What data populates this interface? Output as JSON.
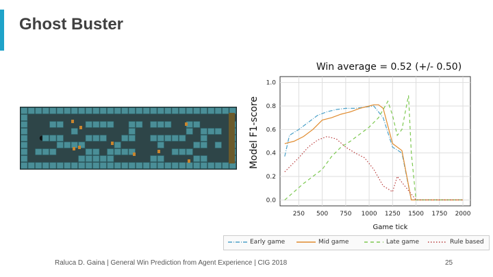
{
  "slide": {
    "title": "Ghost Buster",
    "footer": "Raluca D. Gaina | General Win Prediction from Agent Experience | CIG 2018",
    "page_number": "25"
  },
  "colors": {
    "accent": "#1fa3c9",
    "early": "#4aa0c8",
    "mid": "#e08a2c",
    "late": "#7cc850",
    "rule": "#b83a3a",
    "map_bg": "#2e4548",
    "map_wall": "#4a8e97"
  },
  "game_image": {
    "name": "Ghost Buster level"
  },
  "chart_data": {
    "type": "line",
    "title": "Win average = 0.52 (+/- 0.50)",
    "xlabel": "Game tick",
    "ylabel": "Model F1-score",
    "xlim": [
      50,
      2080
    ],
    "ylim": [
      -0.05,
      1.05
    ],
    "xticks": [
      250,
      500,
      750,
      1000,
      1250,
      1500,
      1750,
      2000
    ],
    "yticks": [
      0.0,
      0.2,
      0.4,
      0.6,
      0.8,
      1.0
    ],
    "grid": true,
    "legend_position": "bottom",
    "series": [
      {
        "name": "Early game",
        "color": "#4aa0c8",
        "dash": "6,2,1,2",
        "x": [
          100,
          150,
          250,
          350,
          450,
          550,
          650,
          750,
          850,
          950,
          1050,
          1150,
          1250,
          1350,
          1450,
          1500,
          1600,
          1800,
          2000
        ],
        "y": [
          0.37,
          0.55,
          0.6,
          0.66,
          0.72,
          0.75,
          0.77,
          0.78,
          0.78,
          0.79,
          0.8,
          0.7,
          0.45,
          0.4,
          0.0,
          0.0,
          0.0,
          0.0,
          0.0
        ]
      },
      {
        "name": "Mid game",
        "color": "#e08a2c",
        "dash": "",
        "x": [
          100,
          200,
          300,
          400,
          500,
          600,
          700,
          800,
          900,
          1000,
          1050,
          1100,
          1150,
          1250,
          1350,
          1450,
          1500,
          1600,
          1800,
          2000
        ],
        "y": [
          0.48,
          0.5,
          0.54,
          0.6,
          0.68,
          0.7,
          0.73,
          0.75,
          0.78,
          0.8,
          0.81,
          0.81,
          0.78,
          0.48,
          0.42,
          0.0,
          0.0,
          0.0,
          0.0,
          0.0
        ]
      },
      {
        "name": "Late game",
        "color": "#7cc850",
        "dash": "5,4",
        "x": [
          100,
          200,
          300,
          400,
          500,
          600,
          700,
          800,
          900,
          1000,
          1100,
          1200,
          1250,
          1300,
          1350,
          1420,
          1450,
          1500,
          1600,
          1800,
          2000
        ],
        "y": [
          0.0,
          0.07,
          0.14,
          0.2,
          0.26,
          0.37,
          0.45,
          0.5,
          0.56,
          0.62,
          0.7,
          0.84,
          0.72,
          0.55,
          0.6,
          0.89,
          0.4,
          0.0,
          0.0,
          0.0,
          0.0
        ]
      },
      {
        "name": "Rule based",
        "color": "#b83a3a",
        "dash": "1.5,2.5",
        "x": [
          100,
          150,
          250,
          350,
          450,
          550,
          650,
          750,
          850,
          950,
          1050,
          1150,
          1250,
          1300,
          1350,
          1450,
          1500,
          1600,
          1800,
          2000
        ],
        "y": [
          0.24,
          0.28,
          0.36,
          0.45,
          0.51,
          0.54,
          0.52,
          0.45,
          0.4,
          0.36,
          0.26,
          0.12,
          0.07,
          0.2,
          0.15,
          0.05,
          0.0,
          0.0,
          0.0,
          0.0
        ]
      }
    ]
  }
}
